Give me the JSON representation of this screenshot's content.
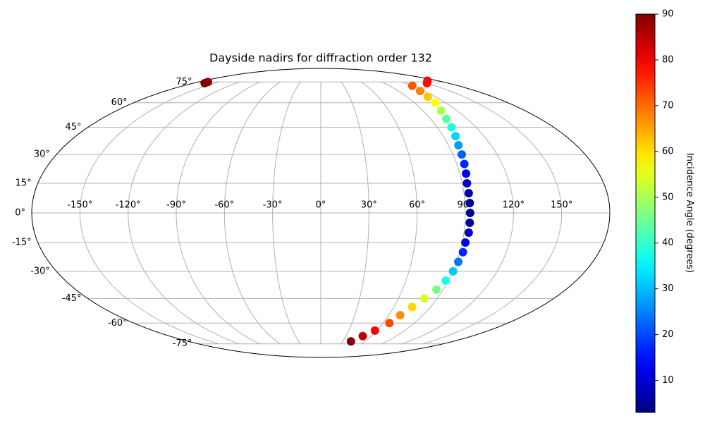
{
  "chart_data": {
    "type": "scatter",
    "projection": "mollweide",
    "title": "Dayside nadirs for diffraction order 132",
    "x": [
      -166,
      -164,
      164,
      150,
      120,
      115,
      112,
      110,
      106,
      103,
      101,
      99,
      97,
      96,
      95,
      94,
      93,
      93,
      93,
      93,
      93,
      93,
      92,
      92,
      91,
      90,
      88,
      85,
      80,
      75,
      70,
      66,
      58,
      50,
      41
    ],
    "y": [
      75,
      74,
      76,
      74,
      72,
      68,
      64,
      60,
      55,
      50,
      45,
      40,
      35,
      30,
      25,
      20,
      15,
      10,
      5,
      0,
      -5,
      -10,
      -15,
      -20,
      -25,
      -30,
      -35,
      -40,
      -45,
      -50,
      -55,
      -60,
      -65,
      -69,
      -73
    ],
    "values": [
      88,
      90,
      80,
      78,
      72,
      68,
      62,
      57,
      50,
      44,
      38,
      32,
      27,
      22,
      17,
      13,
      10,
      7,
      5,
      4,
      5,
      8,
      12,
      17,
      24,
      31,
      38,
      46,
      54,
      61,
      67,
      73,
      79,
      84,
      89
    ],
    "xlim": [
      -180,
      180
    ],
    "ylim": [
      -90,
      90
    ],
    "xticks": [
      {
        "value": -150,
        "label": "-150°"
      },
      {
        "value": -120,
        "label": "-120°"
      },
      {
        "value": -90,
        "label": "-90°"
      },
      {
        "value": -60,
        "label": "-60°"
      },
      {
        "value": -30,
        "label": "-30°"
      },
      {
        "value": 0,
        "label": "0°"
      },
      {
        "value": 30,
        "label": "30°"
      },
      {
        "value": 60,
        "label": "60°"
      },
      {
        "value": 90,
        "label": "90°"
      },
      {
        "value": 120,
        "label": "120°"
      },
      {
        "value": 150,
        "label": "150°"
      }
    ],
    "yticks": [
      {
        "value": -75,
        "label": "-75°"
      },
      {
        "value": -60,
        "label": "-60°"
      },
      {
        "value": -45,
        "label": "-45°"
      },
      {
        "value": -30,
        "label": "-30°"
      },
      {
        "value": -15,
        "label": "-15°"
      },
      {
        "value": 0,
        "label": "0°"
      },
      {
        "value": 15,
        "label": "15°"
      },
      {
        "value": 30,
        "label": "30°"
      },
      {
        "value": 45,
        "label": "45°"
      },
      {
        "value": 60,
        "label": "60°"
      },
      {
        "value": 75,
        "label": "75°"
      }
    ],
    "grid": true,
    "colormap": "jet",
    "colorbar": {
      "label": "Incidence Angle (degrees)",
      "lim": [
        3,
        90
      ],
      "ticks": [
        10,
        20,
        30,
        40,
        50,
        60,
        70,
        80,
        90
      ]
    }
  }
}
